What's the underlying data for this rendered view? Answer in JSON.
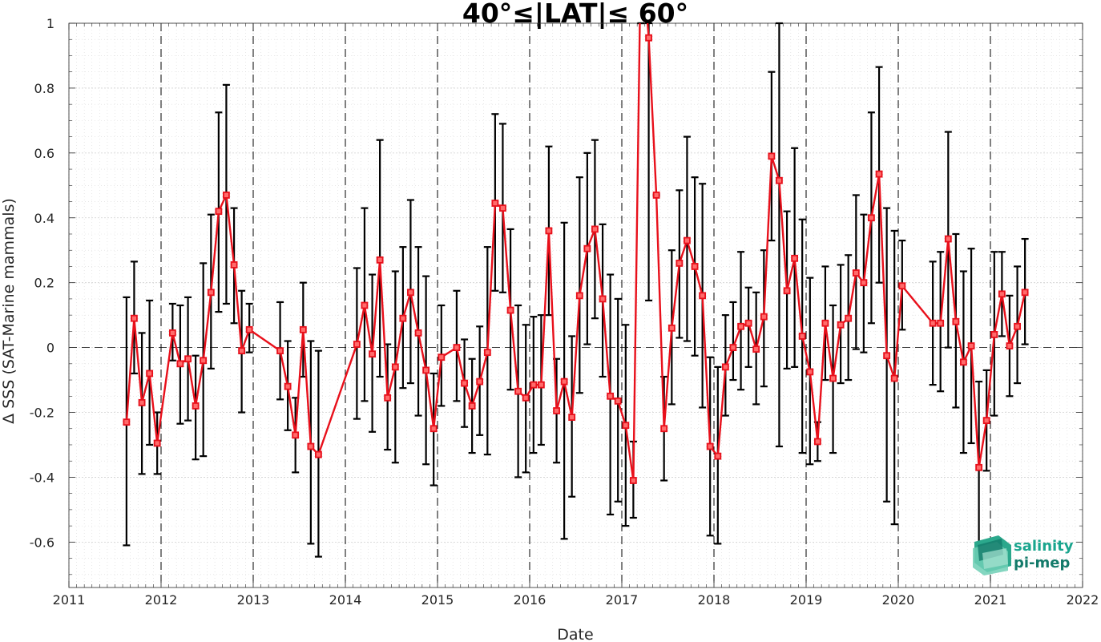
{
  "chart_data": {
    "type": "line",
    "title": "40°≤|LAT|≤ 60°",
    "xlabel": "Date",
    "ylabel": "Δ SSS (SAT-Marine mammals)",
    "xlim": [
      2011,
      2022
    ],
    "ylim": [
      -0.74,
      1.0
    ],
    "xticks": [
      2011,
      2012,
      2013,
      2014,
      2015,
      2016,
      2017,
      2018,
      2019,
      2020,
      2021,
      2022
    ],
    "xtick_labels": [
      "2011",
      "2012",
      "2013",
      "2014",
      "2015",
      "2016",
      "2017",
      "2018",
      "2019",
      "2020",
      "2021",
      "2022"
    ],
    "yticks": [
      -0.6,
      -0.4,
      -0.2,
      0,
      0.2,
      0.4,
      0.6,
      0.8,
      1
    ],
    "ytick_labels": [
      "-0.6",
      "-0.4",
      "-0.2",
      "0",
      "0.2",
      "0.4",
      "0.6",
      "0.8",
      "1"
    ],
    "vertical_dashed_lines_at": [
      2012,
      2013,
      2014,
      2015,
      2016,
      2017,
      2018,
      2019,
      2020,
      2021
    ],
    "horizontal_dashed_line_at": 0,
    "grid": true,
    "colors": {
      "line": "#e8101b",
      "errorbar": "#000000",
      "grid": "#d9d9d9",
      "logo": "#1aa58e"
    },
    "series": [
      {
        "x": [
          2011.625,
          2011.708,
          2011.792,
          2011.875,
          2011.958,
          2012.125,
          2012.208,
          2012.292,
          2012.375,
          2012.458,
          2012.542,
          2012.625,
          2012.708,
          2012.792,
          2012.875,
          2012.958,
          2013.292,
          2013.375,
          2013.458,
          2013.542,
          2013.625,
          2013.708
        ],
        "y": [
          -0.23,
          0.09,
          -0.17,
          -0.08,
          -0.295,
          0.045,
          -0.05,
          -0.035,
          -0.18,
          -0.04,
          0.17,
          0.42,
          0.47,
          0.255,
          -0.01,
          0.055,
          -0.01,
          -0.12,
          -0.27,
          0.055,
          -0.305,
          -0.33
        ],
        "err_low": [
          -0.61,
          -0.08,
          -0.39,
          -0.3,
          -0.39,
          -0.04,
          -0.235,
          -0.225,
          -0.345,
          -0.335,
          -0.065,
          0.11,
          0.135,
          0.075,
          -0.2,
          -0.015,
          -0.16,
          -0.255,
          -0.385,
          -0.09,
          -0.605,
          -0.645
        ],
        "err_high": [
          0.155,
          0.265,
          0.045,
          0.145,
          -0.2,
          0.135,
          0.13,
          0.155,
          -0.025,
          0.26,
          0.41,
          0.725,
          0.81,
          0.43,
          0.175,
          0.135,
          0.14,
          0.02,
          -0.155,
          0.2,
          0.02,
          -0.01
        ]
      },
      {
        "x": [
          2014.125,
          2014.208,
          2014.292,
          2014.375,
          2014.458,
          2014.542,
          2014.625,
          2014.708,
          2014.792,
          2014.875,
          2014.958,
          2015.042,
          2015.208,
          2015.292,
          2015.375,
          2015.458,
          2015.542,
          2015.625,
          2015.708,
          2015.792,
          2015.875,
          2015.958,
          2016.042,
          2016.125,
          2016.208,
          2016.292,
          2016.375,
          2016.458,
          2016.542,
          2016.625,
          2016.708,
          2016.792,
          2016.875,
          2016.958,
          2017.042,
          2017.125,
          2017.208,
          2017.292,
          2017.375,
          2017.458,
          2017.542,
          2017.625,
          2017.708,
          2017.792,
          2017.875,
          2017.958,
          2018.042,
          2018.125,
          2018.208,
          2018.292,
          2018.375,
          2018.458,
          2018.542,
          2018.625,
          2018.708,
          2018.792,
          2018.875,
          2018.958,
          2019.042,
          2019.125,
          2019.208,
          2019.292,
          2019.375,
          2019.458,
          2019.542,
          2019.625,
          2019.708,
          2019.792,
          2019.875,
          2019.958,
          2020.042
        ],
        "y": [
          0.01,
          0.13,
          -0.02,
          0.27,
          -0.155,
          -0.06,
          0.09,
          0.17,
          0.045,
          -0.07,
          -0.25,
          -0.03,
          0.0,
          -0.11,
          -0.18,
          -0.105,
          -0.015,
          0.445,
          0.43,
          0.115,
          -0.135,
          -0.155,
          -0.115,
          -0.115,
          0.36,
          -0.195,
          -0.105,
          -0.215,
          0.16,
          0.305,
          0.365,
          0.15,
          -0.15,
          -0.165,
          -0.24,
          -0.41,
          1.25,
          0.955,
          0.47,
          -0.25,
          0.06,
          0.26,
          0.33,
          0.25,
          0.16,
          -0.305,
          -0.335,
          -0.06,
          0.0,
          0.065,
          0.075,
          -0.005,
          0.095,
          0.59,
          0.515,
          0.175,
          0.275,
          0.035,
          -0.075,
          -0.29,
          0.075,
          -0.095,
          0.07,
          0.09,
          0.23,
          0.2,
          0.4,
          0.535,
          -0.025,
          -0.095,
          0.19
        ],
        "err_low": [
          -0.22,
          -0.165,
          -0.26,
          -0.09,
          -0.315,
          -0.355,
          -0.125,
          -0.11,
          -0.21,
          -0.36,
          -0.425,
          -0.18,
          -0.165,
          -0.245,
          -0.325,
          -0.27,
          -0.33,
          0.175,
          0.17,
          -0.13,
          -0.4,
          -0.385,
          -0.325,
          -0.3,
          0.1,
          -0.355,
          -0.59,
          -0.46,
          -0.14,
          0.01,
          0.09,
          -0.09,
          -0.515,
          -0.475,
          -0.55,
          -0.525,
          1.0,
          0.145,
          0.47,
          -0.41,
          -0.175,
          0.03,
          0.02,
          -0.025,
          -0.185,
          -0.58,
          -0.605,
          -0.21,
          -0.1,
          -0.13,
          -0.06,
          -0.175,
          -0.12,
          0.33,
          -0.305,
          -0.065,
          -0.06,
          -0.325,
          -0.36,
          -0.35,
          -0.1,
          -0.325,
          -0.11,
          -0.1,
          -0.005,
          -0.015,
          0.075,
          0.2,
          -0.475,
          -0.545,
          0.055
        ],
        "err_high": [
          0.245,
          0.43,
          0.225,
          0.64,
          0.01,
          0.235,
          0.31,
          0.455,
          0.31,
          0.22,
          -0.08,
          0.13,
          0.175,
          0.025,
          -0.035,
          0.065,
          0.31,
          0.72,
          0.69,
          0.365,
          0.13,
          0.07,
          0.095,
          0.1,
          0.62,
          -0.035,
          0.385,
          0.035,
          0.525,
          0.6,
          0.64,
          0.38,
          0.225,
          0.15,
          0.07,
          -0.29,
          1.0,
          1.0,
          0.47,
          -0.09,
          0.3,
          0.485,
          0.65,
          0.525,
          0.505,
          -0.03,
          -0.06,
          0.1,
          0.14,
          0.295,
          0.185,
          0.17,
          0.3,
          0.85,
          1.0,
          0.42,
          0.615,
          0.395,
          0.215,
          -0.23,
          0.25,
          0.13,
          0.255,
          0.285,
          0.47,
          0.41,
          0.725,
          0.865,
          0.43,
          0.36,
          0.33
        ]
      },
      {
        "x": [
          2020.375,
          2020.458,
          2020.542,
          2020.625,
          2020.708,
          2020.792,
          2020.875,
          2020.958,
          2021.042,
          2021.125,
          2021.208,
          2021.292,
          2021.375
        ],
        "y": [
          0.075,
          0.075,
          0.335,
          0.08,
          -0.045,
          0.005,
          -0.37,
          -0.225,
          0.04,
          0.165,
          0.005,
          0.065,
          0.17
        ],
        "err_low": [
          -0.115,
          -0.135,
          0.0,
          -0.185,
          -0.325,
          -0.295,
          -0.635,
          -0.38,
          -0.21,
          0.035,
          -0.15,
          -0.11,
          0.01
        ],
        "err_high": [
          0.265,
          0.295,
          0.665,
          0.35,
          0.235,
          0.305,
          -0.105,
          -0.07,
          0.295,
          0.295,
          0.16,
          0.25,
          0.335
        ]
      }
    ]
  },
  "logo": {
    "line1": "salinity",
    "line2": "pi-mep",
    "icon": "salinity-layers-icon"
  }
}
